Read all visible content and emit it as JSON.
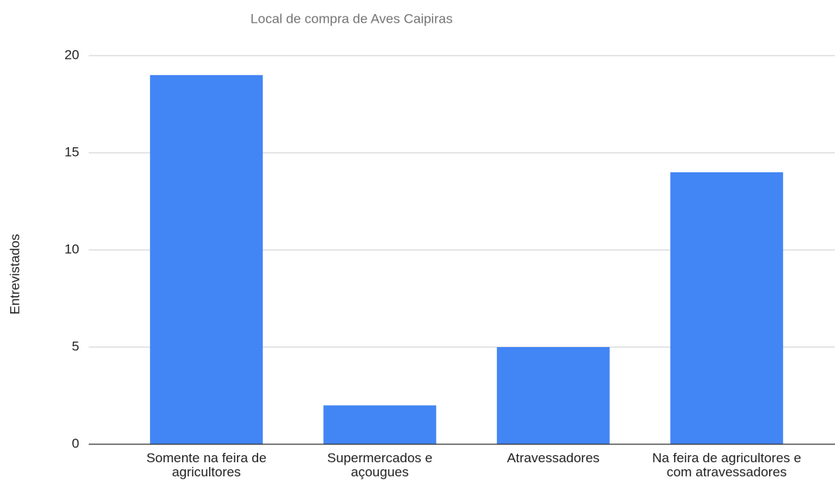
{
  "chart_data": {
    "type": "bar",
    "title": "Local de compra de Aves Caipiras",
    "y_label": "Entrevistados",
    "categories": [
      "Somente na feira de agricultores",
      "Supermercados e açougues",
      "Atravessadores",
      "Na feira de agricultores e com atravessadores"
    ],
    "values": [
      19,
      2,
      5,
      14
    ],
    "color": "#4285f4",
    "ylim": [
      0,
      20
    ],
    "yticks": [
      0,
      5,
      10,
      15,
      20
    ],
    "grid": true
  }
}
